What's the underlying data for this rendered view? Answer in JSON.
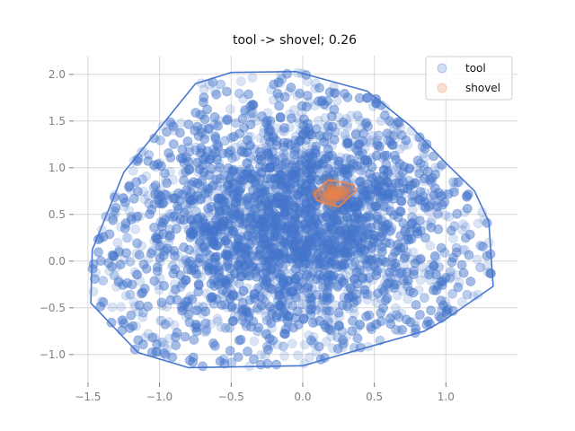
{
  "chart_data": {
    "type": "scatter",
    "title": "tool -> shovel; 0.26",
    "xlabel": "",
    "ylabel": "",
    "xlim": [
      -1.6,
      1.5
    ],
    "ylim": [
      -1.3,
      2.2
    ],
    "xticks": [
      -1.5,
      -1.0,
      -0.5,
      0.0,
      0.5,
      1.0
    ],
    "xtick_labels": [
      "−1.5",
      "−1.0",
      "−0.5",
      "0.0",
      "0.5",
      "1.0"
    ],
    "yticks": [
      -1.0,
      -0.5,
      0.0,
      0.5,
      1.0,
      1.5,
      2.0
    ],
    "ytick_labels": [
      "−1.0",
      "−0.5",
      "0.0",
      "0.5",
      "1.0",
      "1.5",
      "2.0"
    ],
    "grid": true,
    "legend_position": "top-right",
    "series": [
      {
        "name": "tool",
        "color": "#4878cf",
        "point_alpha": 0.2,
        "point_count_approx": 6000,
        "hull": [
          [
            -0.75,
            1.9
          ],
          [
            -0.5,
            2.02
          ],
          [
            -0.05,
            2.03
          ],
          [
            0.45,
            1.82
          ],
          [
            0.75,
            1.45
          ],
          [
            1.0,
            1.05
          ],
          [
            1.2,
            0.75
          ],
          [
            1.3,
            0.42
          ],
          [
            1.33,
            -0.27
          ],
          [
            1.0,
            -0.62
          ],
          [
            0.85,
            -0.75
          ],
          [
            0.55,
            -0.88
          ],
          [
            0.0,
            -1.12
          ],
          [
            -0.8,
            -1.14
          ],
          [
            -1.15,
            -0.98
          ],
          [
            -1.48,
            -0.45
          ],
          [
            -1.47,
            0.12
          ],
          [
            -1.25,
            0.95
          ],
          [
            -0.75,
            1.9
          ]
        ]
      },
      {
        "name": "shovel",
        "color": "#ee854a",
        "point_alpha": 0.2,
        "point_count_approx": 60,
        "hull": [
          [
            0.18,
            0.87
          ],
          [
            0.35,
            0.82
          ],
          [
            0.38,
            0.76
          ],
          [
            0.25,
            0.58
          ],
          [
            0.1,
            0.65
          ],
          [
            0.08,
            0.72
          ],
          [
            0.18,
            0.87
          ]
        ]
      }
    ]
  }
}
